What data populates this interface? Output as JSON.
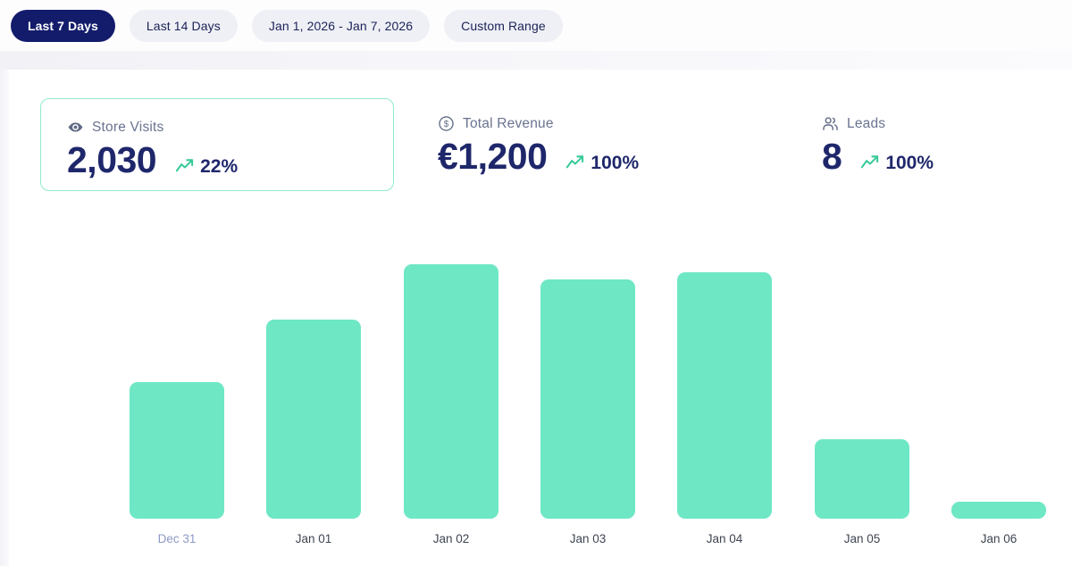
{
  "filters": {
    "options": [
      {
        "label": "Last 7 Days",
        "active": true
      },
      {
        "label": "Last 14 Days",
        "active": false
      },
      {
        "label": "Jan 1, 2026 - Jan 7, 2026",
        "active": false
      },
      {
        "label": "Custom Range",
        "active": false
      }
    ]
  },
  "stats": [
    {
      "id": "store-visits",
      "icon": "eye-icon",
      "label": "Store Visits",
      "value": "2,030",
      "trend": "22%",
      "selected": true
    },
    {
      "id": "total-revenue",
      "icon": "circle-dollar-icon",
      "label": "Total Revenue",
      "value": "€1,200",
      "trend": "100%",
      "selected": false
    },
    {
      "id": "leads",
      "icon": "users-icon",
      "label": "Leads",
      "value": "8",
      "trend": "100%",
      "selected": false
    }
  ],
  "chart_data": {
    "type": "bar",
    "categories": [
      "Dec 31",
      "Jan 01",
      "Jan 02",
      "Jan 03",
      "Jan 04",
      "Jan 05",
      "Jan 06"
    ],
    "values": [
      236,
      345,
      441,
      414,
      427,
      138,
      29
    ],
    "note": "no y-axis shown; values estimated from bar heights, sum matches selected Store Visits total 2,030",
    "title": "",
    "xlabel": "",
    "ylabel": "",
    "grid": false,
    "legend": false,
    "muted_category": "Dec 31"
  },
  "colors": {
    "navy": "#1F276B",
    "active_pill_bg": "#131C6B",
    "active_pill_text": "#FFFFFF",
    "inactive_pill_bg": "#EEF0F6",
    "inactive_pill_text": "#1B2256",
    "bar": "#6EE7C5",
    "trend_green": "#35C998",
    "card_border": "#90EBCD",
    "label_gray": "#6A7390",
    "x_label": "#3E4552",
    "x_label_muted": "#8C99C7"
  }
}
